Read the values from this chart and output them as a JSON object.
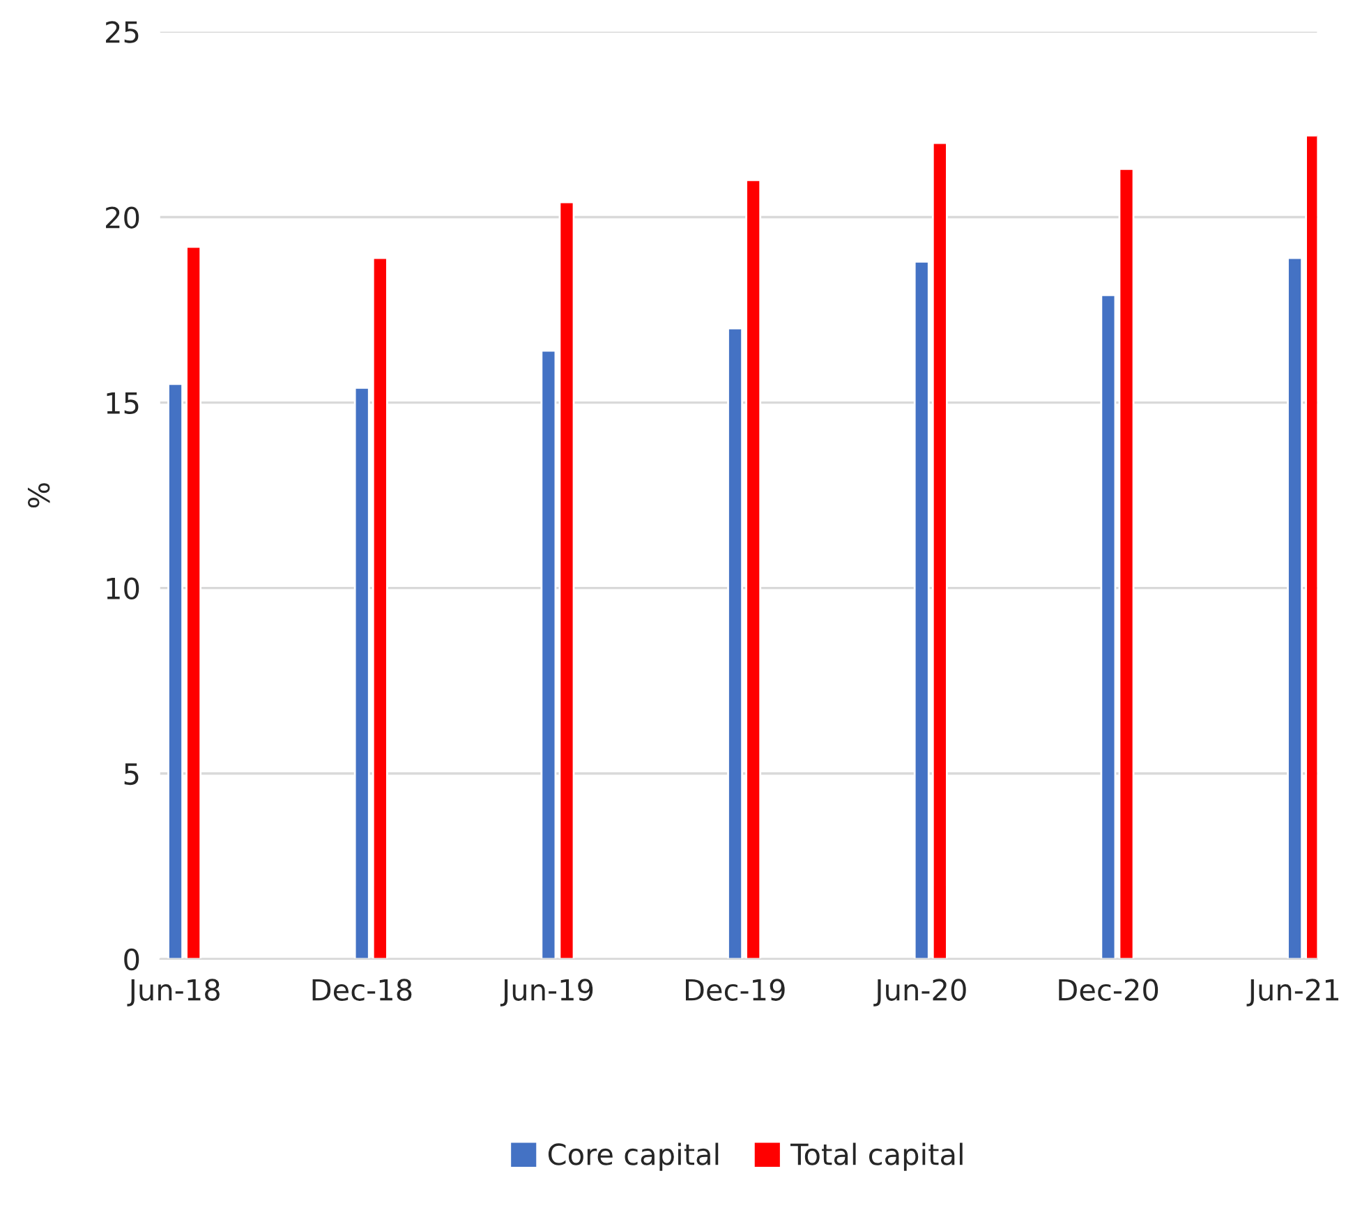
{
  "chart_data": {
    "type": "bar",
    "ylabel": "%",
    "categories": [
      "Jun-18",
      "Dec-18",
      "Jun-19",
      "Dec-19",
      "Jun-20",
      "Dec-20",
      "Jun-21"
    ],
    "series": [
      {
        "name": "Core capital",
        "color": "#4472c4",
        "values": [
          15.5,
          15.4,
          16.4,
          17.0,
          18.8,
          17.9,
          18.9
        ]
      },
      {
        "name": "Total capital",
        "color": "#ff0000",
        "values": [
          19.2,
          18.9,
          20.4,
          21.0,
          22.0,
          21.3,
          22.2
        ]
      }
    ],
    "ylim": [
      0,
      25
    ],
    "yticks": [
      0,
      5,
      10,
      15,
      20,
      25
    ],
    "grid": "y",
    "legend": "bottom"
  }
}
